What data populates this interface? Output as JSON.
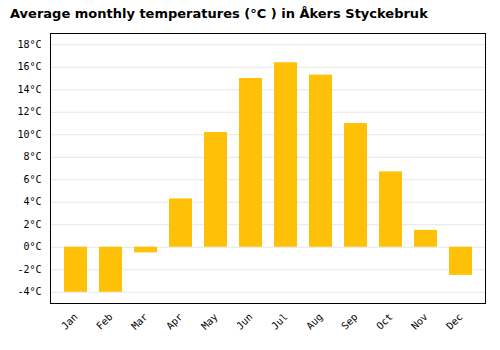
{
  "chart_data": {
    "type": "bar",
    "title": "Average monthly temperatures (°C ) in Åkers Styckebruk",
    "categories": [
      "Jan",
      "Feb",
      "Mar",
      "Apr",
      "May",
      "Jun",
      "Jul",
      "Aug",
      "Sep",
      "Oct",
      "Nov",
      "Dec"
    ],
    "values": [
      -4.0,
      -4.0,
      -0.5,
      4.3,
      10.2,
      15.0,
      16.4,
      15.3,
      11.0,
      6.7,
      1.5,
      -2.5
    ],
    "color": "#FFC107",
    "ylim": [
      -5,
      19
    ],
    "yticks": [
      {
        "value": -4,
        "label": "-4°C"
      },
      {
        "value": -2,
        "label": "-2°C"
      },
      {
        "value": 0,
        "label": "0°C"
      },
      {
        "value": 2,
        "label": "2°C"
      },
      {
        "value": 4,
        "label": "4°C"
      },
      {
        "value": 6,
        "label": "6°C"
      },
      {
        "value": 8,
        "label": "8°C"
      },
      {
        "value": 10,
        "label": "10°C"
      },
      {
        "value": 12,
        "label": "12°C"
      },
      {
        "value": 14,
        "label": "14°C"
      },
      {
        "value": 16,
        "label": "16°C"
      },
      {
        "value": 18,
        "label": "18°C"
      }
    ],
    "grid": true
  }
}
